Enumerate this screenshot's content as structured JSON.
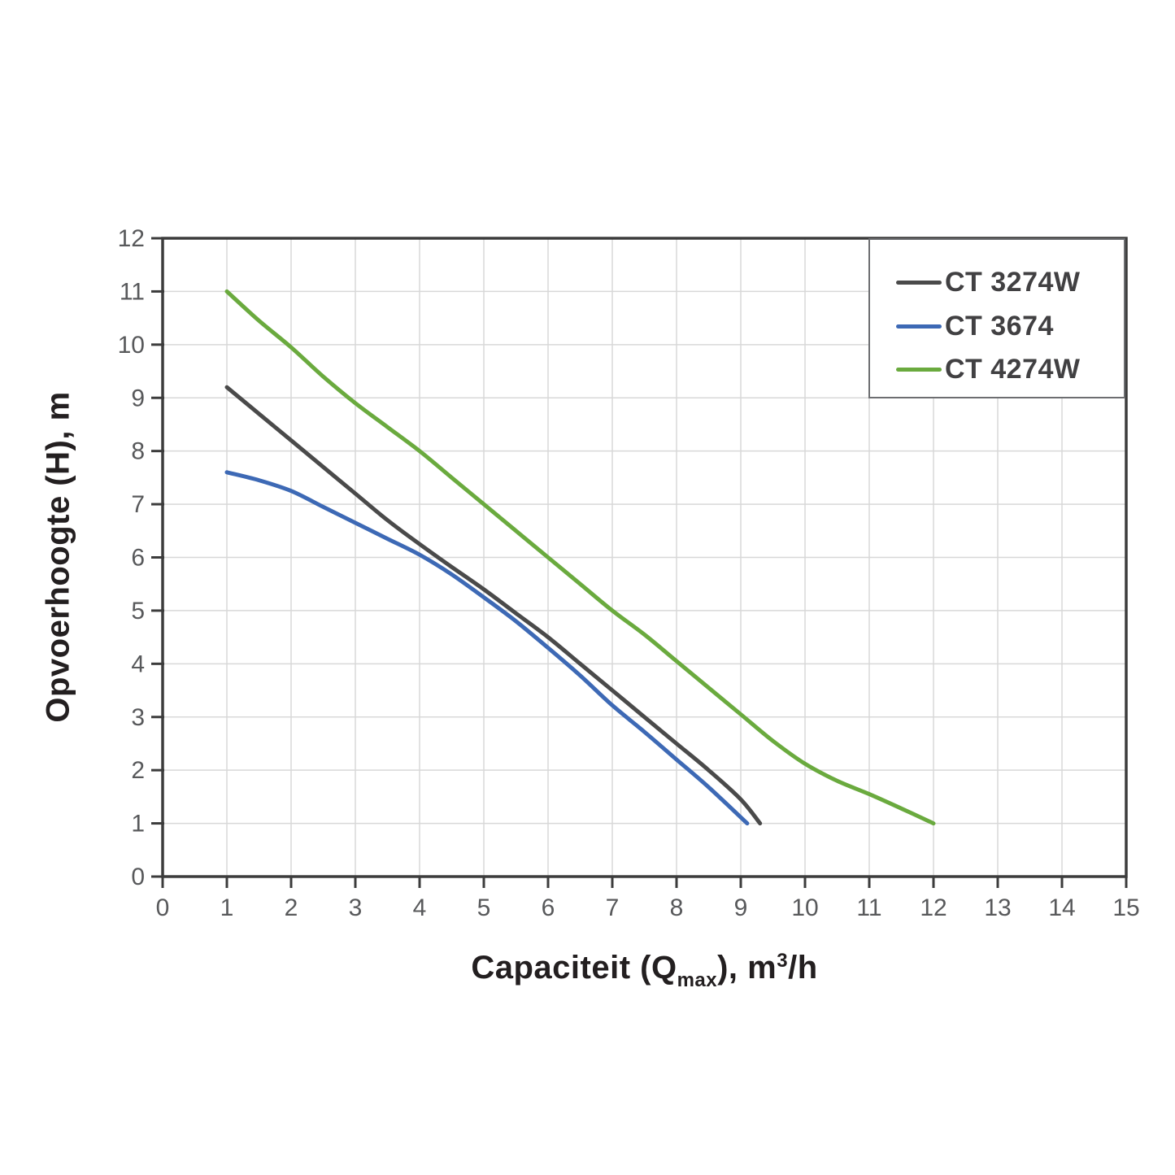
{
  "chart_data": {
    "type": "line",
    "title": "",
    "xlabel": {
      "pre": "Capaciteit (Q",
      "sub": "max",
      "mid": "), m",
      "sup": "3",
      "post": "/h"
    },
    "ylabel": "Opvoerhoogte (H), m",
    "xlim": [
      0,
      15
    ],
    "ylim": [
      0,
      12
    ],
    "xticks": [
      0,
      1,
      2,
      3,
      4,
      5,
      6,
      7,
      8,
      9,
      10,
      11,
      12,
      13,
      14,
      15
    ],
    "yticks": [
      0,
      1,
      2,
      3,
      4,
      5,
      6,
      7,
      8,
      9,
      10,
      11,
      12
    ],
    "grid": true,
    "legend_position": "top-right",
    "series": [
      {
        "name": "CT 3274W",
        "color": "#4a4a4a",
        "points": [
          [
            1,
            9.2
          ],
          [
            1.5,
            8.7
          ],
          [
            2,
            8.2
          ],
          [
            2.5,
            7.7
          ],
          [
            3,
            7.2
          ],
          [
            3.5,
            6.7
          ],
          [
            4,
            6.25
          ],
          [
            4.5,
            5.82
          ],
          [
            5,
            5.4
          ],
          [
            5.5,
            4.95
          ],
          [
            6,
            4.5
          ],
          [
            6.5,
            4.0
          ],
          [
            7,
            3.5
          ],
          [
            7.5,
            3.0
          ],
          [
            8,
            2.5
          ],
          [
            8.5,
            2.0
          ],
          [
            9,
            1.45
          ],
          [
            9.3,
            1.0
          ]
        ]
      },
      {
        "name": "CT 3674",
        "color": "#3d69b5",
        "points": [
          [
            1,
            7.6
          ],
          [
            1.5,
            7.45
          ],
          [
            2,
            7.25
          ],
          [
            2.5,
            6.95
          ],
          [
            3,
            6.65
          ],
          [
            3.5,
            6.35
          ],
          [
            4,
            6.05
          ],
          [
            4.5,
            5.68
          ],
          [
            5,
            5.25
          ],
          [
            5.5,
            4.8
          ],
          [
            6,
            4.3
          ],
          [
            6.5,
            3.78
          ],
          [
            7,
            3.22
          ],
          [
            7.5,
            2.72
          ],
          [
            8,
            2.2
          ],
          [
            8.5,
            1.68
          ],
          [
            9.1,
            1.0
          ]
        ]
      },
      {
        "name": "CT 4274W",
        "color": "#6aaa3e",
        "points": [
          [
            1,
            11.0
          ],
          [
            1.5,
            10.45
          ],
          [
            2,
            9.95
          ],
          [
            2.5,
            9.4
          ],
          [
            3,
            8.9
          ],
          [
            3.5,
            8.45
          ],
          [
            4,
            8.0
          ],
          [
            4.5,
            7.5
          ],
          [
            5,
            7.0
          ],
          [
            5.5,
            6.5
          ],
          [
            6,
            6.0
          ],
          [
            6.5,
            5.5
          ],
          [
            7,
            5.0
          ],
          [
            7.5,
            4.55
          ],
          [
            8,
            4.05
          ],
          [
            8.5,
            3.55
          ],
          [
            9,
            3.05
          ],
          [
            9.5,
            2.55
          ],
          [
            10,
            2.12
          ],
          [
            10.5,
            1.8
          ],
          [
            11,
            1.55
          ],
          [
            11.5,
            1.28
          ],
          [
            12,
            1.0
          ]
        ]
      }
    ]
  },
  "colors": {
    "background": "#ffffff",
    "axis": "#3c3c3c",
    "grid": "#d8d8d8",
    "tick_label": "#58595b",
    "title": "#231f20",
    "legend_border": "#6d6e71",
    "legend_text": "#414042"
  }
}
